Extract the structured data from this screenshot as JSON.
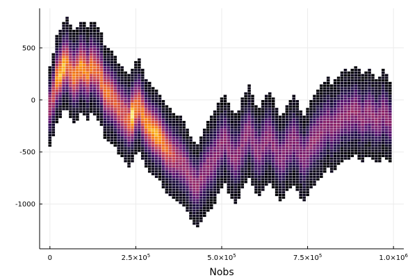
{
  "chart_data": {
    "type": "heatmap",
    "title": "",
    "xlabel": "Nobs",
    "ylabel": "",
    "xlim": [
      -30000,
      1030000
    ],
    "ylim": [
      -1430000,
      880000
    ],
    "y_scale": 0.001,
    "x_ticks": [
      {
        "value": 0,
        "label": "0",
        "exp": ""
      },
      {
        "value": 250000,
        "label": "2.5×10",
        "exp": "5"
      },
      {
        "value": 500000,
        "label": "5.0×10",
        "exp": "5"
      },
      {
        "value": 750000,
        "label": "7.5×10",
        "exp": "5"
      },
      {
        "value": 1000000,
        "label": "1.0×10",
        "exp": "6"
      }
    ],
    "y_ticks": [
      {
        "value": 500,
        "label": "500"
      },
      {
        "value": 0,
        "label": "0"
      },
      {
        "value": -500,
        "label": "-500"
      },
      {
        "value": -1000,
        "label": "-1000"
      }
    ],
    "grid": true,
    "legend": "none",
    "colormap": "inferno",
    "bin_width": 10000,
    "bins": {
      "x_start": 0,
      "x_step": 10000,
      "center": [
        -60,
        50,
        200,
        250,
        330,
        350,
        270,
        230,
        260,
        320,
        300,
        250,
        320,
        300,
        260,
        200,
        80,
        60,
        30,
        -20,
        -80,
        -120,
        -160,
        -200,
        -150,
        -80,
        -50,
        -140,
        -220,
        -260,
        -300,
        -330,
        -360,
        -420,
        -470,
        -500,
        -540,
        -560,
        -580,
        -620,
        -680,
        -760,
        -800,
        -820,
        -760,
        -700,
        -640,
        -600,
        -560,
        -470,
        -420,
        -380,
        -460,
        -520,
        -560,
        -520,
        -420,
        -360,
        -300,
        -380,
        -470,
        -500,
        -440,
        -380,
        -360,
        -420,
        -500,
        -560,
        -540,
        -460,
        -420,
        -380,
        -440,
        -520,
        -560,
        -500,
        -420,
        -380,
        -340,
        -300,
        -260,
        -220,
        -280,
        -240,
        -200,
        -160,
        -140,
        -150,
        -120,
        -100,
        -140,
        -180,
        -140,
        -120,
        -160,
        -200,
        -180,
        -120,
        -160,
        -210
      ],
      "spread": [
        380,
        400,
        420,
        420,
        420,
        440,
        450,
        450,
        450,
        440,
        440,
        440,
        440,
        440,
        450,
        450,
        450,
        450,
        450,
        440,
        440,
        440,
        440,
        440,
        440,
        450,
        450,
        440,
        430,
        430,
        430,
        430,
        420,
        420,
        420,
        420,
        420,
        420,
        420,
        410,
        400,
        400,
        400,
        400,
        410,
        430,
        440,
        450,
        450,
        440,
        440,
        430,
        430,
        430,
        430,
        430,
        440,
        440,
        440,
        440,
        430,
        430,
        430,
        440,
        440,
        440,
        430,
        420,
        420,
        420,
        430,
        440,
        440,
        430,
        420,
        420,
        430,
        440,
        440,
        440,
        440,
        440,
        430,
        430,
        430,
        430,
        430,
        430,
        430,
        430,
        430,
        420,
        420,
        420,
        420,
        410,
        410,
        420,
        410,
        390
      ],
      "peak": [
        0.55,
        0.65,
        0.85,
        0.9,
        0.92,
        0.8,
        0.75,
        0.78,
        0.8,
        0.85,
        0.82,
        0.8,
        0.78,
        0.75,
        0.72,
        0.78,
        0.76,
        0.8,
        0.74,
        0.72,
        0.7,
        0.68,
        0.7,
        0.75,
        0.98,
        0.8,
        0.78,
        0.8,
        0.82,
        0.85,
        0.88,
        0.9,
        0.85,
        0.8,
        0.75,
        0.68,
        0.62,
        0.55,
        0.52,
        0.5,
        0.5,
        0.48,
        0.48,
        0.46,
        0.46,
        0.45,
        0.45,
        0.44,
        0.44,
        0.44,
        0.45,
        0.44,
        0.43,
        0.43,
        0.44,
        0.44,
        0.45,
        0.45,
        0.44,
        0.43,
        0.43,
        0.42,
        0.43,
        0.44,
        0.44,
        0.43,
        0.42,
        0.42,
        0.43,
        0.44,
        0.44,
        0.43,
        0.42,
        0.42,
        0.43,
        0.44,
        0.45,
        0.46,
        0.46,
        0.45,
        0.44,
        0.44,
        0.45,
        0.46,
        0.46,
        0.45,
        0.45,
        0.46,
        0.47,
        0.47,
        0.46,
        0.45,
        0.46,
        0.47,
        0.46,
        0.45,
        0.44,
        0.45,
        0.45,
        0.42
      ]
    }
  }
}
